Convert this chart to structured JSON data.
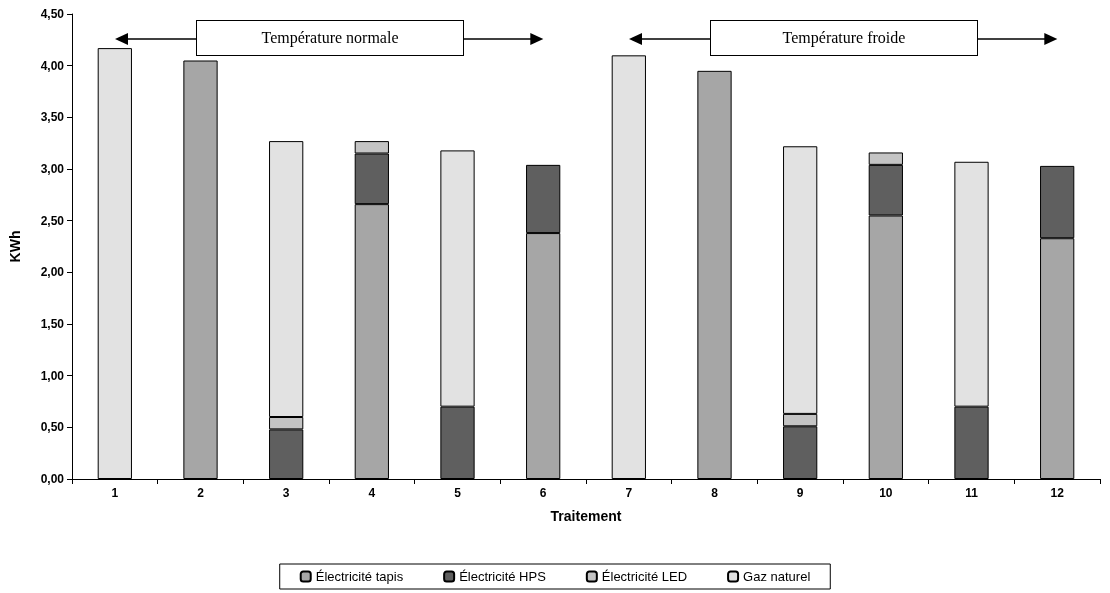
{
  "chart_data": {
    "type": "bar",
    "stacked": true,
    "xlabel": "Traitement",
    "ylabel": "KWh",
    "categories": [
      "1",
      "2",
      "3",
      "4",
      "5",
      "6",
      "7",
      "8",
      "9",
      "10",
      "11",
      "12"
    ],
    "series": [
      {
        "name": "Électricité tapis",
        "color": "#a6a6a6",
        "values": [
          null,
          4.05,
          null,
          2.66,
          null,
          2.38,
          null,
          3.95,
          null,
          2.55,
          null,
          2.33
        ]
      },
      {
        "name": "Électricité HPS",
        "color": "#5f5f5f",
        "values": [
          null,
          null,
          0.48,
          0.49,
          0.7,
          0.66,
          null,
          null,
          0.51,
          0.49,
          0.7,
          0.7
        ]
      },
      {
        "name": "Électricité LED",
        "color": "#c4c4c4",
        "values": [
          null,
          null,
          0.12,
          0.12,
          null,
          null,
          null,
          null,
          0.12,
          0.12,
          null,
          null
        ]
      },
      {
        "name": "Gaz naturel",
        "color": "#e2e2e2",
        "values": [
          4.17,
          null,
          2.67,
          null,
          2.48,
          null,
          4.1,
          null,
          2.59,
          null,
          2.37,
          null
        ]
      }
    ],
    "ylim": [
      0,
      4.5
    ],
    "yticks": [
      {
        "value": 0,
        "label": "0,00"
      },
      {
        "value": 0.5,
        "label": "0,50"
      },
      {
        "value": 1,
        "label": "1,00"
      },
      {
        "value": 1.5,
        "label": "1,50"
      },
      {
        "value": 2,
        "label": "2,00"
      },
      {
        "value": 2.5,
        "label": "2,50"
      },
      {
        "value": 3,
        "label": "3,00"
      },
      {
        "value": 3.5,
        "label": "3,50"
      },
      {
        "value": 4,
        "label": "4,00"
      },
      {
        "value": 4.5,
        "label": "4,50"
      }
    ],
    "annotations": [
      "Température normale",
      "Température froide"
    ],
    "grid": false,
    "legend": "bottom"
  }
}
